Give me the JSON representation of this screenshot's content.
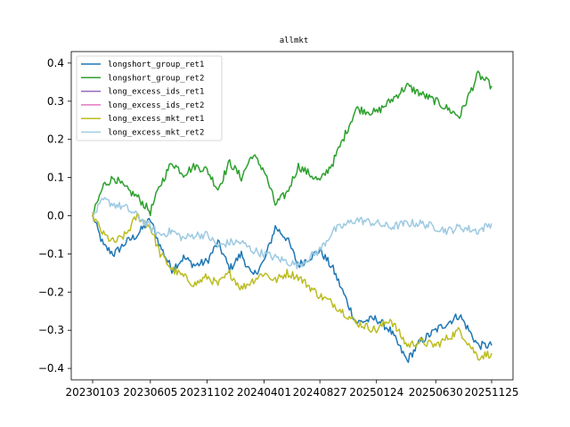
{
  "chart_data": {
    "type": "line",
    "title": "allmkt",
    "xlabel": "",
    "ylabel": "",
    "x_ticks": [
      "20230103",
      "20230605",
      "20231102",
      "20240401",
      "20240827",
      "20250124",
      "20250630",
      "20251125"
    ],
    "x_range": [
      "20230103",
      "20251125"
    ],
    "ylim": [
      -0.43,
      0.43
    ],
    "y_ticks": [
      0.4,
      0.3,
      0.2,
      0.1,
      0.0,
      -0.1,
      -0.2,
      -0.3,
      -0.4
    ],
    "y_tick_labels": [
      "0.4",
      "0.3",
      "0.2",
      "0.1",
      "0.0",
      "−0.1",
      "−0.2",
      "−0.3",
      "−0.4"
    ],
    "grid": false,
    "legend_position": "top-left",
    "series": [
      {
        "name": "longshort_group_ret1",
        "color": "#1f77b4",
        "points": [
          [
            "20230103",
            0.0
          ],
          [
            "20230201",
            -0.08
          ],
          [
            "20230301",
            -0.1
          ],
          [
            "20230401",
            -0.07
          ],
          [
            "20230501",
            -0.05
          ],
          [
            "20230605",
            -0.01
          ],
          [
            "20230701",
            -0.08
          ],
          [
            "20230801",
            -0.14
          ],
          [
            "20230901",
            -0.11
          ],
          [
            "20231001",
            -0.13
          ],
          [
            "20231102",
            -0.12
          ],
          [
            "20231201",
            -0.07
          ],
          [
            "20240101",
            -0.14
          ],
          [
            "20240201",
            -0.1
          ],
          [
            "20240301",
            -0.16
          ],
          [
            "20240401",
            -0.12
          ],
          [
            "20240501",
            -0.03
          ],
          [
            "20240601",
            -0.06
          ],
          [
            "20240701",
            -0.13
          ],
          [
            "20240827",
            -0.09
          ],
          [
            "20241001",
            -0.14
          ],
          [
            "20241201",
            -0.28
          ],
          [
            "20250124",
            -0.27
          ],
          [
            "20250301",
            -0.3
          ],
          [
            "20250415",
            -0.38
          ],
          [
            "20250520",
            -0.33
          ],
          [
            "20250630",
            -0.3
          ],
          [
            "20250801",
            -0.28
          ],
          [
            "20250901",
            -0.26
          ],
          [
            "20251020",
            -0.34
          ],
          [
            "20251125",
            -0.34
          ]
        ]
      },
      {
        "name": "longshort_group_ret2",
        "color": "#2ca02c",
        "points": [
          [
            "20230103",
            0.0
          ],
          [
            "20230201",
            0.08
          ],
          [
            "20230301",
            0.1
          ],
          [
            "20230401",
            0.07
          ],
          [
            "20230501",
            0.05
          ],
          [
            "20230605",
            0.01
          ],
          [
            "20230701",
            0.08
          ],
          [
            "20230801",
            0.14
          ],
          [
            "20230901",
            0.11
          ],
          [
            "20231001",
            0.13
          ],
          [
            "20231102",
            0.12
          ],
          [
            "20231201",
            0.07
          ],
          [
            "20240101",
            0.14
          ],
          [
            "20240201",
            0.1
          ],
          [
            "20240301",
            0.16
          ],
          [
            "20240401",
            0.12
          ],
          [
            "20240501",
            0.03
          ],
          [
            "20240601",
            0.06
          ],
          [
            "20240701",
            0.13
          ],
          [
            "20240827",
            0.09
          ],
          [
            "20241001",
            0.14
          ],
          [
            "20241201",
            0.28
          ],
          [
            "20250124",
            0.27
          ],
          [
            "20250301",
            0.3
          ],
          [
            "20250415",
            0.34
          ],
          [
            "20250520",
            0.32
          ],
          [
            "20250630",
            0.3
          ],
          [
            "20250801",
            0.28
          ],
          [
            "20250901",
            0.26
          ],
          [
            "20251020",
            0.37
          ],
          [
            "20251125",
            0.34
          ]
        ]
      },
      {
        "name": "long_excess_ids_ret1",
        "color": "#9467bd",
        "points": []
      },
      {
        "name": "long_excess_ids_ret2",
        "color": "#e377c2",
        "points": []
      },
      {
        "name": "long_excess_mkt_ret1",
        "color": "#bcbd22",
        "points": [
          [
            "20230103",
            0.0
          ],
          [
            "20230201",
            -0.05
          ],
          [
            "20230301",
            -0.07
          ],
          [
            "20230401",
            -0.05
          ],
          [
            "20230501",
            0.0
          ],
          [
            "20230605",
            -0.03
          ],
          [
            "20230701",
            -0.1
          ],
          [
            "20230801",
            -0.14
          ],
          [
            "20230901",
            -0.16
          ],
          [
            "20231001",
            -0.18
          ],
          [
            "20231102",
            -0.16
          ],
          [
            "20231201",
            -0.18
          ],
          [
            "20240101",
            -0.15
          ],
          [
            "20240201",
            -0.19
          ],
          [
            "20240301",
            -0.17
          ],
          [
            "20240401",
            -0.15
          ],
          [
            "20240501",
            -0.17
          ],
          [
            "20240601",
            -0.15
          ],
          [
            "20240701",
            -0.16
          ],
          [
            "20240827",
            -0.21
          ],
          [
            "20241001",
            -0.23
          ],
          [
            "20241201",
            -0.28
          ],
          [
            "20250124",
            -0.3
          ],
          [
            "20250301",
            -0.27
          ],
          [
            "20250415",
            -0.34
          ],
          [
            "20250520",
            -0.33
          ],
          [
            "20250630",
            -0.34
          ],
          [
            "20250801",
            -0.32
          ],
          [
            "20250901",
            -0.3
          ],
          [
            "20251020",
            -0.37
          ],
          [
            "20251125",
            -0.36
          ]
        ]
      },
      {
        "name": "long_excess_mkt_ret2",
        "color": "#9ecae1",
        "points": [
          [
            "20230103",
            0.0
          ],
          [
            "20230201",
            0.04
          ],
          [
            "20230301",
            0.03
          ],
          [
            "20230401",
            0.02
          ],
          [
            "20230501",
            0.0
          ],
          [
            "20230605",
            -0.03
          ],
          [
            "20230701",
            -0.05
          ],
          [
            "20230801",
            -0.04
          ],
          [
            "20230901",
            -0.06
          ],
          [
            "20231001",
            -0.05
          ],
          [
            "20231102",
            -0.05
          ],
          [
            "20231201",
            -0.08
          ],
          [
            "20240101",
            -0.07
          ],
          [
            "20240201",
            -0.07
          ],
          [
            "20240301",
            -0.09
          ],
          [
            "20240401",
            -0.1
          ],
          [
            "20240501",
            -0.11
          ],
          [
            "20240601",
            -0.12
          ],
          [
            "20240701",
            -0.13
          ],
          [
            "20240827",
            -0.09
          ],
          [
            "20241001",
            -0.04
          ],
          [
            "20241201",
            -0.01
          ],
          [
            "20250124",
            -0.02
          ],
          [
            "20250301",
            -0.03
          ],
          [
            "20250415",
            -0.02
          ],
          [
            "20250520",
            -0.02
          ],
          [
            "20250630",
            -0.03
          ],
          [
            "20250801",
            -0.04
          ],
          [
            "20250901",
            -0.03
          ],
          [
            "20251020",
            -0.04
          ],
          [
            "20251125",
            -0.02
          ]
        ]
      }
    ]
  }
}
